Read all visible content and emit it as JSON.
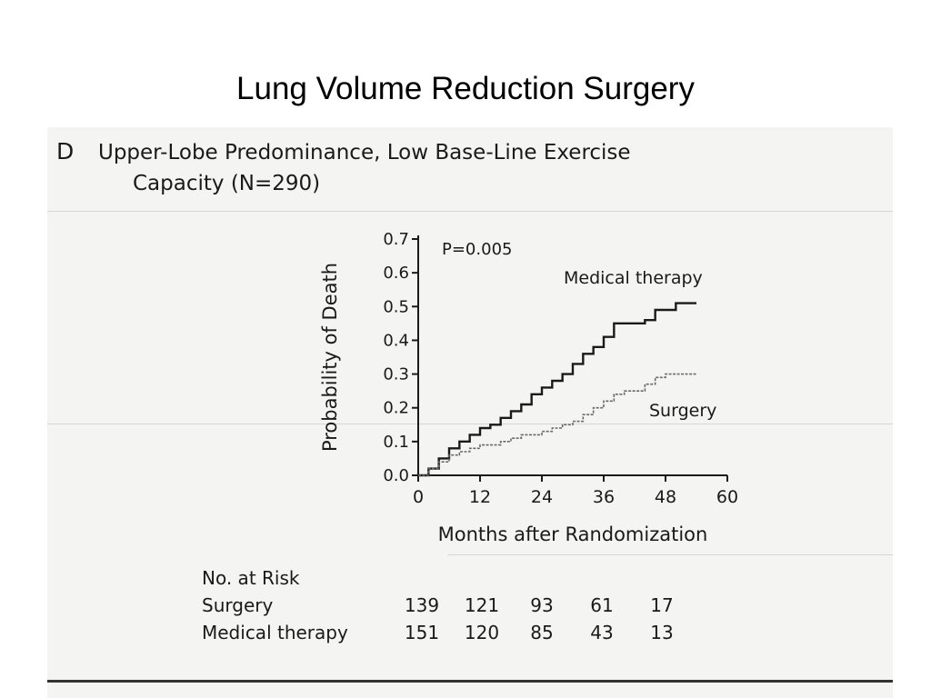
{
  "slide": {
    "title": "Lung Volume Reduction Surgery"
  },
  "panel": {
    "letter": "D",
    "title_line1": "Upper-Lobe Predominance, Low Base-Line Exercise",
    "title_line2": "Capacity (N=290)"
  },
  "chart_data": {
    "type": "line",
    "xlabel": "Months after Randomization",
    "ylabel": "Probability of Death",
    "xlim": [
      0,
      60
    ],
    "ylim": [
      0,
      0.7
    ],
    "xticks": [
      0,
      12,
      24,
      36,
      48,
      60
    ],
    "yticks": [
      0.0,
      0.1,
      0.2,
      0.3,
      0.4,
      0.5,
      0.6,
      0.7
    ],
    "ytick_labels": [
      "0.0",
      "0.1",
      "0.2",
      "0.3",
      "0.4",
      "0.5",
      "0.6",
      "0.7"
    ],
    "annotation": "P=0.005",
    "grid": false,
    "series": [
      {
        "name": "Medical therapy",
        "color": "#1a1a1a",
        "x": [
          0,
          2,
          4,
          6,
          8,
          10,
          12,
          14,
          16,
          18,
          20,
          22,
          24,
          26,
          28,
          30,
          32,
          34,
          36,
          38,
          40,
          42,
          44,
          46,
          48,
          50,
          52,
          54
        ],
        "y": [
          0,
          0.02,
          0.05,
          0.08,
          0.1,
          0.12,
          0.14,
          0.15,
          0.17,
          0.19,
          0.21,
          0.24,
          0.26,
          0.28,
          0.3,
          0.33,
          0.36,
          0.38,
          0.41,
          0.45,
          0.45,
          0.45,
          0.46,
          0.49,
          0.49,
          0.51,
          0.51,
          0.51
        ]
      },
      {
        "name": "Surgery",
        "color": "#6a6a6a",
        "x": [
          0,
          2,
          4,
          6,
          8,
          10,
          12,
          14,
          16,
          18,
          20,
          22,
          24,
          26,
          28,
          30,
          32,
          34,
          36,
          38,
          40,
          42,
          44,
          46,
          48,
          50,
          52,
          54
        ],
        "y": [
          0,
          0.02,
          0.04,
          0.06,
          0.07,
          0.08,
          0.09,
          0.09,
          0.1,
          0.11,
          0.12,
          0.12,
          0.13,
          0.14,
          0.15,
          0.16,
          0.18,
          0.2,
          0.22,
          0.24,
          0.25,
          0.25,
          0.27,
          0.29,
          0.3,
          0.3,
          0.3,
          0.3
        ]
      }
    ]
  },
  "risk_table": {
    "title": "No. at Risk",
    "rows": [
      {
        "label": "Surgery",
        "values": [
          "139",
          "121",
          "93",
          "61",
          "17"
        ]
      },
      {
        "label": "Medical therapy",
        "values": [
          "151",
          "120",
          "85",
          "43",
          "13"
        ]
      }
    ]
  }
}
